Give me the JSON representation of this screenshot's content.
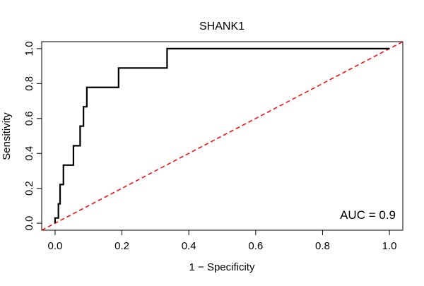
{
  "chart_data": {
    "type": "line",
    "title": "SHANK1",
    "xlabel": "1 − Specificity",
    "ylabel": "Sensitivity",
    "xlim": [
      -0.04,
      1.04
    ],
    "ylim": [
      -0.04,
      1.04
    ],
    "x_ticks": [
      0.0,
      0.2,
      0.4,
      0.6,
      0.8,
      1.0
    ],
    "x_tick_labels": [
      "0.0",
      "0.2",
      "0.4",
      "0.6",
      "0.8",
      "1.0"
    ],
    "y_ticks": [
      0.0,
      0.2,
      0.4,
      0.6,
      0.8,
      1.0
    ],
    "y_tick_labels": [
      "0.0",
      "0.2",
      "0.4",
      "0.6",
      "0.8",
      "1.0"
    ],
    "annotation": "AUC = 0.9",
    "series": [
      {
        "name": "ROC curve",
        "color": "#000000",
        "style": "solid",
        "x": [
          0.0,
          0.0,
          0.01,
          0.01,
          0.015,
          0.015,
          0.025,
          0.025,
          0.055,
          0.055,
          0.075,
          0.075,
          0.085,
          0.085,
          0.095,
          0.095,
          0.11,
          0.11,
          0.19,
          0.19,
          0.205,
          0.205,
          0.335,
          0.335,
          1.0
        ],
        "y": [
          0.0,
          0.03,
          0.03,
          0.111,
          0.111,
          0.222,
          0.222,
          0.333,
          0.333,
          0.444,
          0.444,
          0.556,
          0.556,
          0.667,
          0.667,
          0.778,
          0.778,
          0.778,
          0.778,
          0.889,
          0.889,
          0.889,
          0.889,
          1.0,
          1.0
        ]
      },
      {
        "name": "Reference diagonal",
        "color": "#ff0000",
        "style": "dashed",
        "x": [
          -0.04,
          1.04
        ],
        "y": [
          -0.04,
          1.04
        ]
      }
    ]
  }
}
